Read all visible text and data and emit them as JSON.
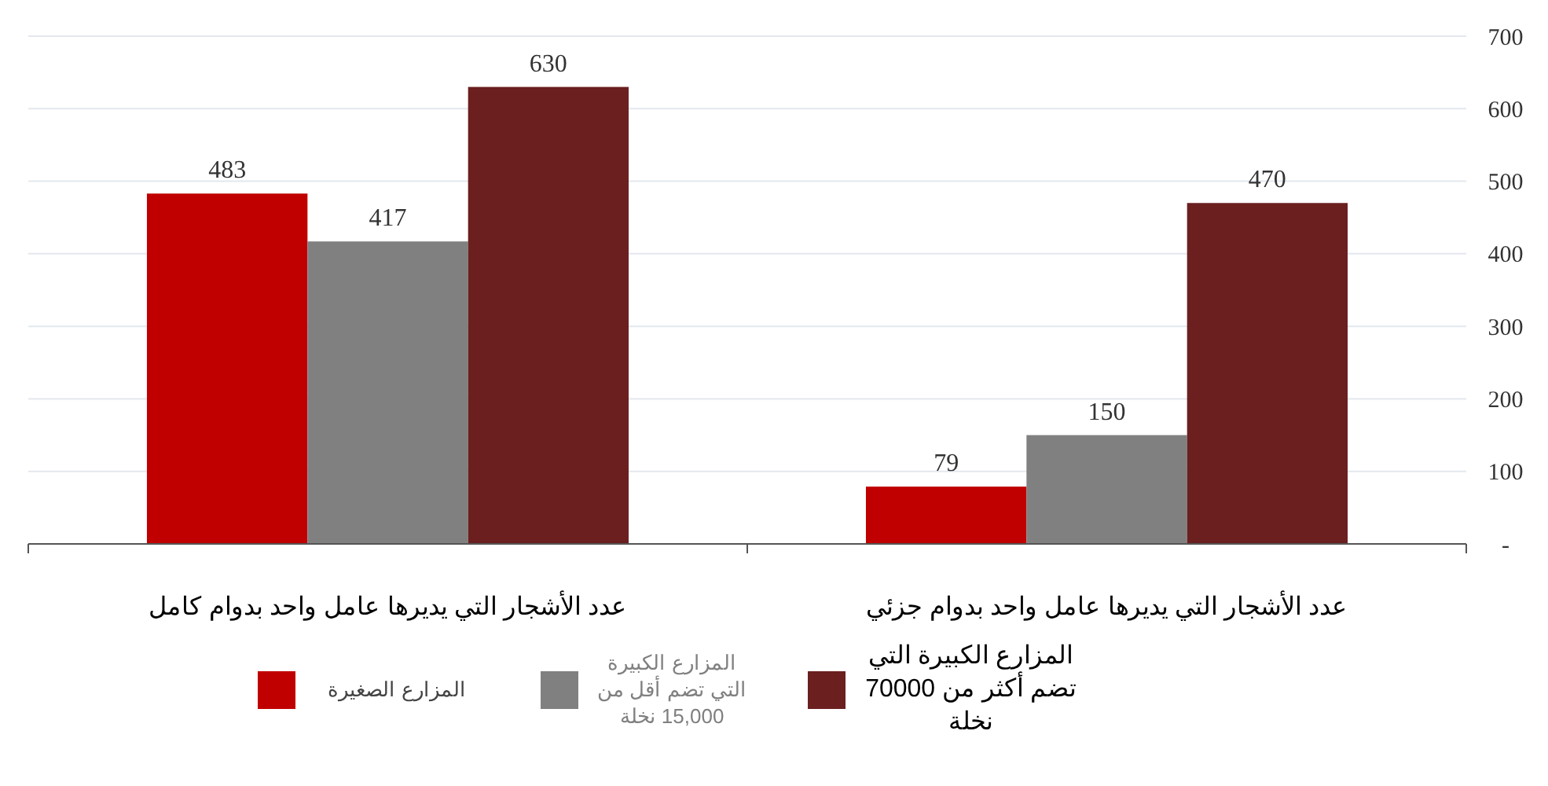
{
  "chart_data": {
    "type": "bar",
    "categories": [
      "عدد الأشجار التي يديرها عامل واحد بدوام كامل",
      "عدد الأشجار التي يديرها عامل واحد بدوام جزئي"
    ],
    "series": [
      {
        "name": "المزارع الصغيرة",
        "color": "#c00000",
        "values": [
          483,
          79
        ]
      },
      {
        "name": "المزارع الكبيرة التي تضم أقل من 15,000 نخلة",
        "color": "#808080",
        "values": [
          417,
          150
        ]
      },
      {
        "name": "المزارع الكبيرة التي تضم أكثر من 70000 نخلة",
        "color": "#6b1f1f",
        "values": [
          630,
          470
        ]
      }
    ],
    "ylim": [
      0,
      700
    ],
    "yticks": [
      {
        "value": 0,
        "label": "-"
      },
      100,
      200,
      300,
      400,
      500,
      600,
      700
    ],
    "grid": "y",
    "data_labels": true,
    "legend": "bottom"
  }
}
